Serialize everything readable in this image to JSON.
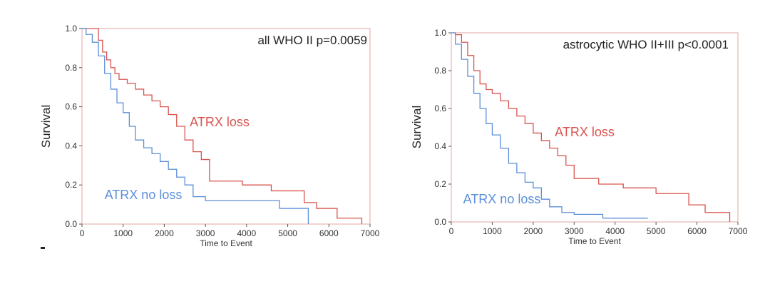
{
  "figure": {
    "stray_mark": "-"
  },
  "chart_data": [
    {
      "type": "line",
      "title": "all WHO II p=0.0059",
      "xlabel": "Time to Event",
      "ylabel": "Survival",
      "xlim": [
        0,
        7000
      ],
      "ylim": [
        0,
        1.0
      ],
      "xticks": [
        "0",
        "1000",
        "2000",
        "3000",
        "4000",
        "5000",
        "6000",
        "7000"
      ],
      "yticks": [
        "0.0",
        "0.2",
        "0.4",
        "0.6",
        "0.8",
        "1.0"
      ],
      "grid": false,
      "series": [
        {
          "name": "ATRX loss",
          "color": "#d9534f",
          "step": true,
          "x": [
            0,
            150,
            400,
            500,
            600,
            700,
            800,
            900,
            1100,
            1300,
            1500,
            1700,
            1900,
            2100,
            2300,
            2500,
            2700,
            2900,
            3100,
            3900,
            4600,
            5400,
            5700,
            6200,
            6800
          ],
          "y": [
            1.0,
            1.0,
            0.94,
            0.88,
            0.84,
            0.8,
            0.77,
            0.74,
            0.72,
            0.69,
            0.66,
            0.63,
            0.6,
            0.56,
            0.5,
            0.43,
            0.37,
            0.33,
            0.22,
            0.2,
            0.17,
            0.11,
            0.08,
            0.03,
            0.0
          ]
        },
        {
          "name": "ATRX no loss",
          "color": "#5b8fd9",
          "step": true,
          "x": [
            0,
            100,
            250,
            400,
            550,
            700,
            850,
            1000,
            1150,
            1300,
            1500,
            1700,
            1900,
            2100,
            2300,
            2500,
            2700,
            3000,
            4800,
            5500
          ],
          "y": [
            1.0,
            0.97,
            0.93,
            0.86,
            0.77,
            0.69,
            0.62,
            0.57,
            0.5,
            0.43,
            0.39,
            0.36,
            0.32,
            0.28,
            0.24,
            0.2,
            0.14,
            0.12,
            0.08,
            0.0
          ]
        }
      ]
    },
    {
      "type": "line",
      "title": "astrocytic WHO II+III p<0.0001",
      "xlabel": "Time to Event",
      "ylabel": "Survival",
      "xlim": [
        0,
        7000
      ],
      "ylim": [
        0,
        1.0
      ],
      "xticks": [
        "0",
        "1000",
        "2000",
        "3000",
        "4000",
        "5000",
        "6000",
        "7000"
      ],
      "yticks": [
        "0.0",
        "0.2",
        "0.4",
        "0.6",
        "0.8",
        "1.0"
      ],
      "grid": false,
      "series": [
        {
          "name": "ATRX loss",
          "color": "#d9534f",
          "step": true,
          "x": [
            0,
            100,
            250,
            400,
            550,
            700,
            850,
            1000,
            1200,
            1400,
            1600,
            1800,
            2000,
            2200,
            2400,
            2600,
            2800,
            3000,
            3600,
            4200,
            5000,
            5800,
            6200,
            6800
          ],
          "y": [
            1.0,
            0.99,
            0.95,
            0.88,
            0.8,
            0.73,
            0.7,
            0.68,
            0.64,
            0.6,
            0.56,
            0.52,
            0.47,
            0.43,
            0.39,
            0.35,
            0.3,
            0.23,
            0.2,
            0.18,
            0.15,
            0.09,
            0.05,
            0.0
          ]
        },
        {
          "name": "ATRX no loss",
          "color": "#5b8fd9",
          "step": true,
          "x": [
            0,
            100,
            250,
            400,
            550,
            700,
            850,
            1000,
            1200,
            1400,
            1600,
            1800,
            2000,
            2200,
            2400,
            2700,
            3000,
            3700,
            4800
          ],
          "y": [
            1.0,
            0.94,
            0.86,
            0.77,
            0.68,
            0.6,
            0.52,
            0.46,
            0.39,
            0.31,
            0.26,
            0.21,
            0.18,
            0.12,
            0.08,
            0.05,
            0.04,
            0.02,
            0.02
          ]
        }
      ]
    }
  ]
}
